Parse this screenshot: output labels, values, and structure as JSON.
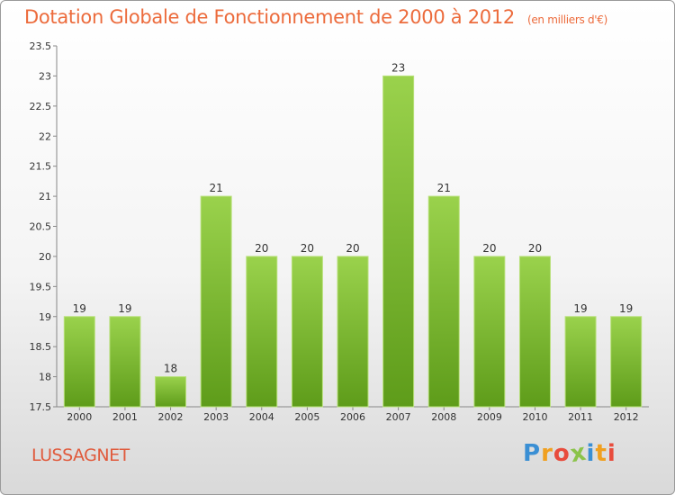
{
  "chart_data": {
    "type": "bar",
    "title": "Dotation Globale de Fonctionnement de 2000 à 2012",
    "subtitle": "(en milliers d'€)",
    "categories": [
      "2000",
      "2001",
      "2002",
      "2003",
      "2004",
      "2005",
      "2006",
      "2007",
      "2008",
      "2009",
      "2010",
      "2011",
      "2012"
    ],
    "values": [
      19,
      19,
      18,
      21,
      20,
      20,
      20,
      23,
      21,
      20,
      20,
      19,
      19
    ],
    "ylim": [
      17.5,
      23.5
    ],
    "yticks": [
      "17.5",
      "18",
      "18.5",
      "19",
      "19.5",
      "20",
      "20.5",
      "21",
      "21.5",
      "22",
      "22.5",
      "23",
      "23.5"
    ],
    "grid": false,
    "bar_color": "#7cb82f"
  },
  "commune": "LUSSAGNET",
  "logo": {
    "letters": [
      "P",
      "r",
      "o",
      "x",
      "i",
      "t",
      "i"
    ],
    "colors": [
      "#3a8fd4",
      "#f0a020",
      "#e84c3c",
      "#8bc34a",
      "#3a8fd4",
      "#f0a020",
      "#e84c3c"
    ]
  }
}
